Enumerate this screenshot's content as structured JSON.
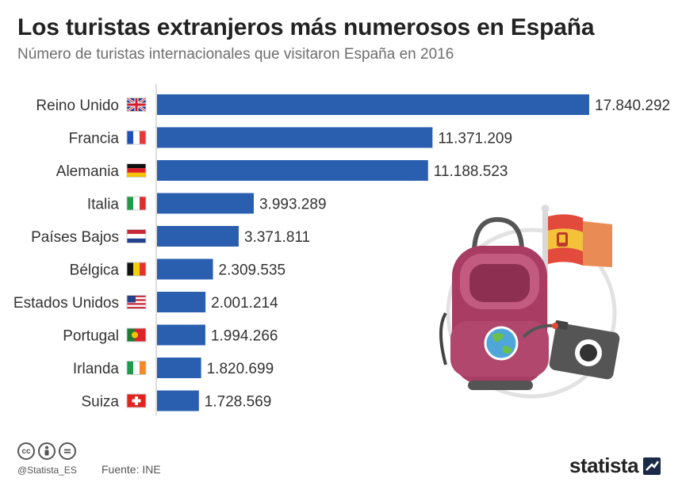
{
  "header": {
    "title": "Los turistas extranjeros más numerosos en España",
    "subtitle": "Número de turistas internacionales que visitaron España en 2016"
  },
  "chart_data": {
    "type": "bar",
    "orientation": "horizontal",
    "categories": [
      "Reino Unido",
      "Francia",
      "Alemania",
      "Italia",
      "Países Bajos",
      "Bélgica",
      "Estados Unidos",
      "Portugal",
      "Irlanda",
      "Suiza"
    ],
    "values": [
      17840292,
      11371209,
      11188523,
      3993289,
      3371811,
      2309535,
      2001214,
      1994266,
      1820699,
      1728569
    ],
    "value_labels": [
      "17.840.292",
      "11.371.209",
      "11.188.523",
      "3.993.289",
      "3.371.811",
      "2.309.535",
      "2.001.214",
      "1.994.266",
      "1.820.699",
      "1.728.569"
    ],
    "flags": [
      "uk-flag-icon",
      "france-flag-icon",
      "germany-flag-icon",
      "italy-flag-icon",
      "netherlands-flag-icon",
      "belgium-flag-icon",
      "usa-flag-icon",
      "portugal-flag-icon",
      "ireland-flag-icon",
      "switzerland-flag-icon"
    ],
    "bar_color": "#2a5fb0",
    "xlim": [
      0,
      17840292
    ],
    "grid": false,
    "legend": "none"
  },
  "footer": {
    "handle": "@Statista_ES",
    "source": "Fuente: INE",
    "logo": "statista"
  },
  "icons": [
    "creative-commons-icon",
    "attribution-icon",
    "no-derivatives-icon",
    "backpack-icon",
    "globe-icon",
    "camera-icon",
    "spain-flag-icon"
  ]
}
